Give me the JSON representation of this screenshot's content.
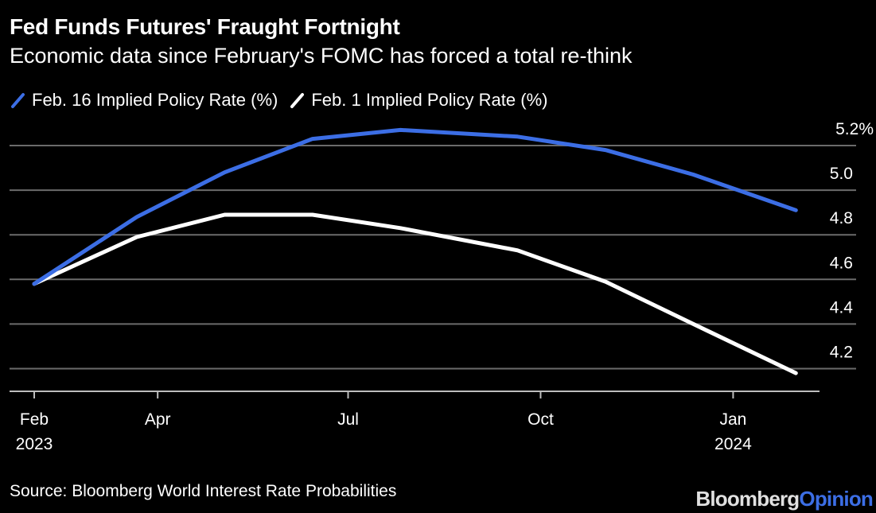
{
  "header": {
    "title": "Fed Funds Futures' Fraught Fortnight",
    "subtitle": "Economic data since February's FOMC has forced a total re-think"
  },
  "footer": {
    "source": "Source: Bloomberg World Interest Rate Probabilities",
    "logo_part1": "Bloomberg",
    "logo_part2": "Opinion"
  },
  "colors": {
    "background": "#000000",
    "series_feb16": "#3c6ee5",
    "series_feb1": "#ffffff",
    "gridline": "#6b6b6b",
    "axis": "#bdbdbd"
  },
  "chart_data": {
    "type": "line",
    "title": "Fed Funds Futures' Fraught Fortnight",
    "subtitle": "Economic data since February's FOMC has forced a total re-think",
    "xlabel": "",
    "ylabel": "",
    "x": [
      "2023-02-01",
      "2023-03-22",
      "2023-05-03",
      "2023-06-14",
      "2023-07-26",
      "2023-09-20",
      "2023-11-01",
      "2023-12-13",
      "2024-01-31"
    ],
    "x_day_offsets": [
      0,
      49,
      91,
      133,
      175,
      231,
      273,
      315,
      364
    ],
    "series": [
      {
        "name": "Feb. 16 Implied Policy Rate (%)",
        "color": "#3c6ee5",
        "values": [
          4.58,
          4.88,
          5.08,
          5.23,
          5.27,
          5.24,
          5.18,
          5.07,
          4.91
        ]
      },
      {
        "name": "Feb. 1 Implied Policy Rate (%)",
        "color": "#ffffff",
        "values": [
          4.58,
          4.79,
          4.89,
          4.89,
          4.83,
          4.73,
          4.59,
          4.4,
          4.18
        ]
      }
    ],
    "ylim": [
      4.1,
      5.3
    ],
    "y_ticks": [
      5.2,
      5.0,
      4.8,
      4.6,
      4.4,
      4.2
    ],
    "y_tick_labels": [
      "5.2%",
      "5.0",
      "4.8",
      "4.6",
      "4.4",
      "4.2"
    ],
    "x_ticks": [
      {
        "day": 0,
        "label": "Feb",
        "sublabel": "2023"
      },
      {
        "day": 59,
        "label": "Apr",
        "sublabel": ""
      },
      {
        "day": 150,
        "label": "Jul",
        "sublabel": ""
      },
      {
        "day": 242,
        "label": "Oct",
        "sublabel": ""
      },
      {
        "day": 334,
        "label": "Jan",
        "sublabel": "2024"
      }
    ],
    "grid": true,
    "y_axis_side": "right",
    "legend_position": "top-left"
  }
}
